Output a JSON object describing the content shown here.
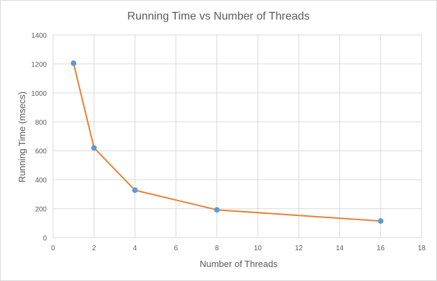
{
  "chart_data": {
    "type": "scatter",
    "title": "Running Time vs Number of Threads",
    "xlabel": "Number of Threads",
    "ylabel": "Running Time (msecs)",
    "xlim": [
      0,
      18
    ],
    "ylim": [
      0,
      1400
    ],
    "x_ticks": [
      0,
      2,
      4,
      6,
      8,
      10,
      12,
      14,
      16,
      18
    ],
    "y_ticks": [
      0,
      200,
      400,
      600,
      800,
      1000,
      1200,
      1400
    ],
    "grid": true,
    "legend": "none",
    "series": [
      {
        "x": [
          1,
          2,
          4,
          8,
          16
        ],
        "y": [
          1205,
          620,
          328,
          192,
          115
        ],
        "line_color": "#ed7d31",
        "marker_color": "#5b9bd5",
        "style": "scatter with straight lines and markers"
      }
    ]
  }
}
